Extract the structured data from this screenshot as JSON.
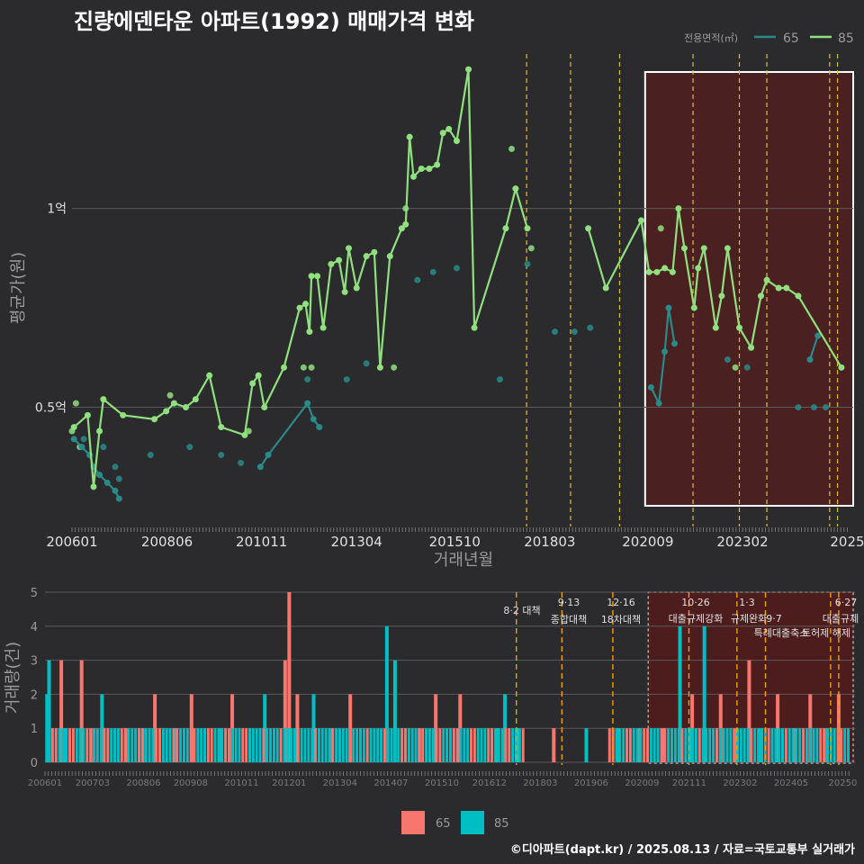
{
  "title": "진량에덴타운 아파트(1992) 매매가격 변화",
  "credit": "©디아파트(dapt.kr) / 2025.08.13 / 자료=국토교통부 실거래가",
  "colors": {
    "background": "#2b2b2d",
    "grid": "#5a5a5a",
    "s65_price": "#2a8a8a",
    "s85_price": "#90e080",
    "s65_volume": "#f8766d",
    "s85_volume": "#00bfc4",
    "shade": "#5a1a1a",
    "dash": "#e0c020",
    "dash_vol": "#f0a000",
    "text_dim": "#9a9a9a",
    "text_light": "#e0e0e0"
  },
  "chart_data": [
    {
      "type": "line",
      "name": "price",
      "ylabel": "평균가(원)",
      "xlabel": "거래년월",
      "yticks": [
        {
          "v": 0.5,
          "label": "0.5억"
        },
        {
          "v": 1.0,
          "label": "1억"
        }
      ],
      "ylim": [
        0.2,
        1.4
      ],
      "xticks": [
        "200601",
        "200806",
        "201011",
        "201304",
        "201510",
        "201803",
        "202009",
        "202302",
        "2025"
      ],
      "legend": {
        "title": "전용면적(㎡)",
        "items": [
          "65",
          "85"
        ],
        "placement": "top-right"
      },
      "series": [
        {
          "name": "65",
          "points": [
            [
              2006.05,
              0.42
            ],
            [
              2006.25,
              0.4
            ],
            [
              2006.45,
              0.38
            ],
            [
              2006.55,
              0.35
            ],
            [
              2006.7,
              0.33
            ],
            [
              2006.9,
              0.31
            ],
            [
              2007.1,
              0.29
            ],
            [
              2007.2,
              0.27
            ],
            [
              2010.8,
              0.35
            ],
            [
              2011.0,
              0.38
            ],
            [
              2012.0,
              0.51
            ],
            [
              2012.15,
              0.47
            ],
            [
              2012.3,
              0.45
            ],
            [
              2020.75,
              0.55
            ],
            [
              2020.95,
              0.51
            ],
            [
              2021.1,
              0.64
            ],
            [
              2021.2,
              0.75
            ],
            [
              2021.35,
              0.66
            ],
            [
              2024.8,
              0.62
            ],
            [
              2025.0,
              0.68
            ]
          ]
        },
        {
          "name": "85",
          "points": [
            [
              2006.05,
              0.45
            ],
            [
              2006.4,
              0.48
            ],
            [
              2006.55,
              0.3
            ],
            [
              2006.7,
              0.44
            ],
            [
              2006.8,
              0.52
            ],
            [
              2007.3,
              0.48
            ],
            [
              2008.1,
              0.47
            ],
            [
              2008.4,
              0.49
            ],
            [
              2008.6,
              0.51
            ],
            [
              2008.9,
              0.5
            ],
            [
              2009.15,
              0.52
            ],
            [
              2009.5,
              0.58
            ],
            [
              2009.8,
              0.45
            ],
            [
              2010.4,
              0.43
            ],
            [
              2010.6,
              0.56
            ],
            [
              2010.75,
              0.58
            ],
            [
              2010.9,
              0.5
            ],
            [
              2011.4,
              0.6
            ],
            [
              2011.8,
              0.75
            ],
            [
              2011.95,
              0.76
            ],
            [
              2012.05,
              0.69
            ],
            [
              2012.1,
              0.83
            ],
            [
              2012.25,
              0.83
            ],
            [
              2012.4,
              0.7
            ],
            [
              2012.6,
              0.86
            ],
            [
              2012.8,
              0.87
            ],
            [
              2012.95,
              0.79
            ],
            [
              2013.05,
              0.9
            ],
            [
              2013.25,
              0.8
            ],
            [
              2013.5,
              0.88
            ],
            [
              2013.7,
              0.89
            ],
            [
              2013.85,
              0.6
            ],
            [
              2014.1,
              0.88
            ],
            [
              2014.4,
              0.95
            ],
            [
              2014.5,
              0.96
            ],
            [
              2014.6,
              1.18
            ],
            [
              2014.7,
              1.08
            ],
            [
              2014.9,
              1.1
            ],
            [
              2015.1,
              1.1
            ],
            [
              2015.3,
              1.11
            ],
            [
              2015.45,
              1.19
            ],
            [
              2015.6,
              1.2
            ],
            [
              2015.8,
              1.17
            ],
            [
              2016.1,
              1.35
            ],
            [
              2016.25,
              0.7
            ],
            [
              2017.05,
              0.95
            ],
            [
              2017.3,
              1.05
            ],
            [
              2017.6,
              0.95
            ],
            [
              2019.15,
              0.95
            ],
            [
              2019.6,
              0.8
            ],
            [
              2020.5,
              0.97
            ],
            [
              2020.7,
              0.84
            ],
            [
              2020.9,
              0.84
            ],
            [
              2021.1,
              0.85
            ],
            [
              2021.3,
              0.84
            ],
            [
              2021.45,
              1.0
            ],
            [
              2021.6,
              0.9
            ],
            [
              2021.85,
              0.75
            ],
            [
              2021.95,
              0.85
            ],
            [
              2022.1,
              0.9
            ],
            [
              2022.4,
              0.7
            ],
            [
              2022.55,
              0.78
            ],
            [
              2022.7,
              0.9
            ],
            [
              2023.0,
              0.7
            ],
            [
              2023.3,
              0.65
            ],
            [
              2023.55,
              0.78
            ],
            [
              2023.7,
              0.82
            ],
            [
              2024.0,
              0.8
            ],
            [
              2024.2,
              0.8
            ],
            [
              2024.5,
              0.78
            ],
            [
              2025.6,
              0.6
            ]
          ]
        }
      ],
      "scatter_extra": [
        {
          "name": "65",
          "points": [
            [
              2006.3,
              0.42
            ],
            [
              2006.8,
              0.4
            ],
            [
              2007.1,
              0.35
            ],
            [
              2007.2,
              0.32
            ],
            [
              2008.0,
              0.38
            ],
            [
              2009.0,
              0.4
            ],
            [
              2009.8,
              0.38
            ],
            [
              2010.3,
              0.36
            ],
            [
              2012.0,
              0.57
            ],
            [
              2013.0,
              0.57
            ],
            [
              2013.5,
              0.61
            ],
            [
              2014.8,
              0.82
            ],
            [
              2015.2,
              0.84
            ],
            [
              2015.8,
              0.85
            ],
            [
              2016.9,
              0.57
            ],
            [
              2017.6,
              0.86
            ],
            [
              2018.3,
              0.69
            ],
            [
              2018.8,
              0.69
            ],
            [
              2019.2,
              0.7
            ],
            [
              2022.7,
              0.62
            ],
            [
              2023.2,
              0.6
            ],
            [
              2024.5,
              0.5
            ],
            [
              2024.9,
              0.5
            ],
            [
              2025.2,
              0.5
            ]
          ]
        },
        {
          "name": "85",
          "points": [
            [
              2006.0,
              0.44
            ],
            [
              2006.1,
              0.51
            ],
            [
              2006.2,
              0.4
            ],
            [
              2008.5,
              0.53
            ],
            [
              2010.5,
              0.44
            ],
            [
              2011.9,
              0.6
            ],
            [
              2012.1,
              0.6
            ],
            [
              2014.2,
              0.6
            ],
            [
              2014.5,
              1.0
            ],
            [
              2017.2,
              1.15
            ],
            [
              2017.7,
              0.9
            ],
            [
              2022.9,
              0.6
            ],
            [
              2021.0,
              0.95
            ]
          ]
        }
      ]
    },
    {
      "type": "bar",
      "name": "volume",
      "ylabel": "거래량(건)",
      "yticks": [
        0,
        1,
        2,
        3,
        4,
        5
      ],
      "ylim": [
        0,
        5
      ],
      "xticks": [
        "200601",
        "200703",
        "200806",
        "200908",
        "201011",
        "201201",
        "201304",
        "201407",
        "201510",
        "201612",
        "201803",
        "201906",
        "202009",
        "202111",
        "202302",
        "202405",
        "20250"
      ],
      "legend": {
        "items": [
          "65",
          "85"
        ],
        "placement": "bottom"
      },
      "bars": [
        [
          2006.05,
          2,
          "85"
        ],
        [
          2006.1,
          3,
          "85"
        ],
        [
          2006.4,
          3,
          "65"
        ],
        [
          2006.5,
          1,
          "85"
        ],
        [
          2006.9,
          3,
          "65"
        ],
        [
          2007.2,
          1,
          "65"
        ],
        [
          2007.4,
          2,
          "85"
        ],
        [
          2008.0,
          1,
          "65"
        ],
        [
          2008.4,
          1,
          "85"
        ],
        [
          2008.7,
          2,
          "65"
        ],
        [
          2009.2,
          1,
          "85"
        ],
        [
          2009.6,
          2,
          "65"
        ],
        [
          2010.3,
          1,
          "85"
        ],
        [
          2010.6,
          2,
          "65"
        ],
        [
          2011.4,
          2,
          "85"
        ],
        [
          2011.9,
          3,
          "65"
        ],
        [
          2012.0,
          5,
          "65"
        ],
        [
          2012.2,
          2,
          "65"
        ],
        [
          2012.6,
          2,
          "85"
        ],
        [
          2013.0,
          1,
          "85"
        ],
        [
          2013.5,
          2,
          "65"
        ],
        [
          2014.4,
          4,
          "85"
        ],
        [
          2014.6,
          3,
          "85"
        ],
        [
          2015.2,
          1,
          "85"
        ],
        [
          2015.6,
          2,
          "65"
        ],
        [
          2016.2,
          2,
          "65"
        ],
        [
          2017.1,
          1,
          "85"
        ],
        [
          2017.3,
          2,
          "85"
        ],
        [
          2017.6,
          1,
          "65"
        ],
        [
          2018.5,
          1,
          "65"
        ],
        [
          2019.3,
          1,
          "85"
        ],
        [
          2020.1,
          1,
          "85"
        ],
        [
          2020.6,
          1,
          "65"
        ],
        [
          2021.2,
          1,
          "65"
        ],
        [
          2021.6,
          4,
          "85"
        ],
        [
          2021.9,
          2,
          "65"
        ],
        [
          2022.2,
          4,
          "85"
        ],
        [
          2022.6,
          2,
          "65"
        ],
        [
          2023.0,
          1,
          "65"
        ],
        [
          2023.3,
          3,
          "65"
        ],
        [
          2023.6,
          1,
          "85"
        ],
        [
          2024.0,
          2,
          "65"
        ],
        [
          2024.4,
          1,
          "65"
        ],
        [
          2024.8,
          2,
          "65"
        ],
        [
          2025.2,
          1,
          "85"
        ],
        [
          2025.5,
          2,
          "65"
        ]
      ]
    }
  ],
  "policy_events": [
    {
      "date": 2017.58,
      "label_top": "8·2 대책",
      "label_bottom": ""
    },
    {
      "date": 2018.7,
      "label_top": "9·13",
      "label_bottom": "종합대책"
    },
    {
      "date": 2019.95,
      "label_top": "12·16",
      "label_bottom": "18차대책"
    },
    {
      "date": 2021.82,
      "label_top": "10·26",
      "label_bottom": "대출규제강화"
    },
    {
      "date": 2023.0,
      "label_top": "1·3",
      "label_bottom": "규제완화"
    },
    {
      "date": 2023.7,
      "label_top": "9·7",
      "label_bottom": "특례대출축소"
    },
    {
      "date": 2025.5,
      "label_top": "6·27",
      "label_bottom": "대출규제"
    },
    {
      "date": 2025.3,
      "label_top": "",
      "label_bottom": "토허제 해제"
    }
  ],
  "highlight_range": [
    2020.6,
    2025.9
  ]
}
